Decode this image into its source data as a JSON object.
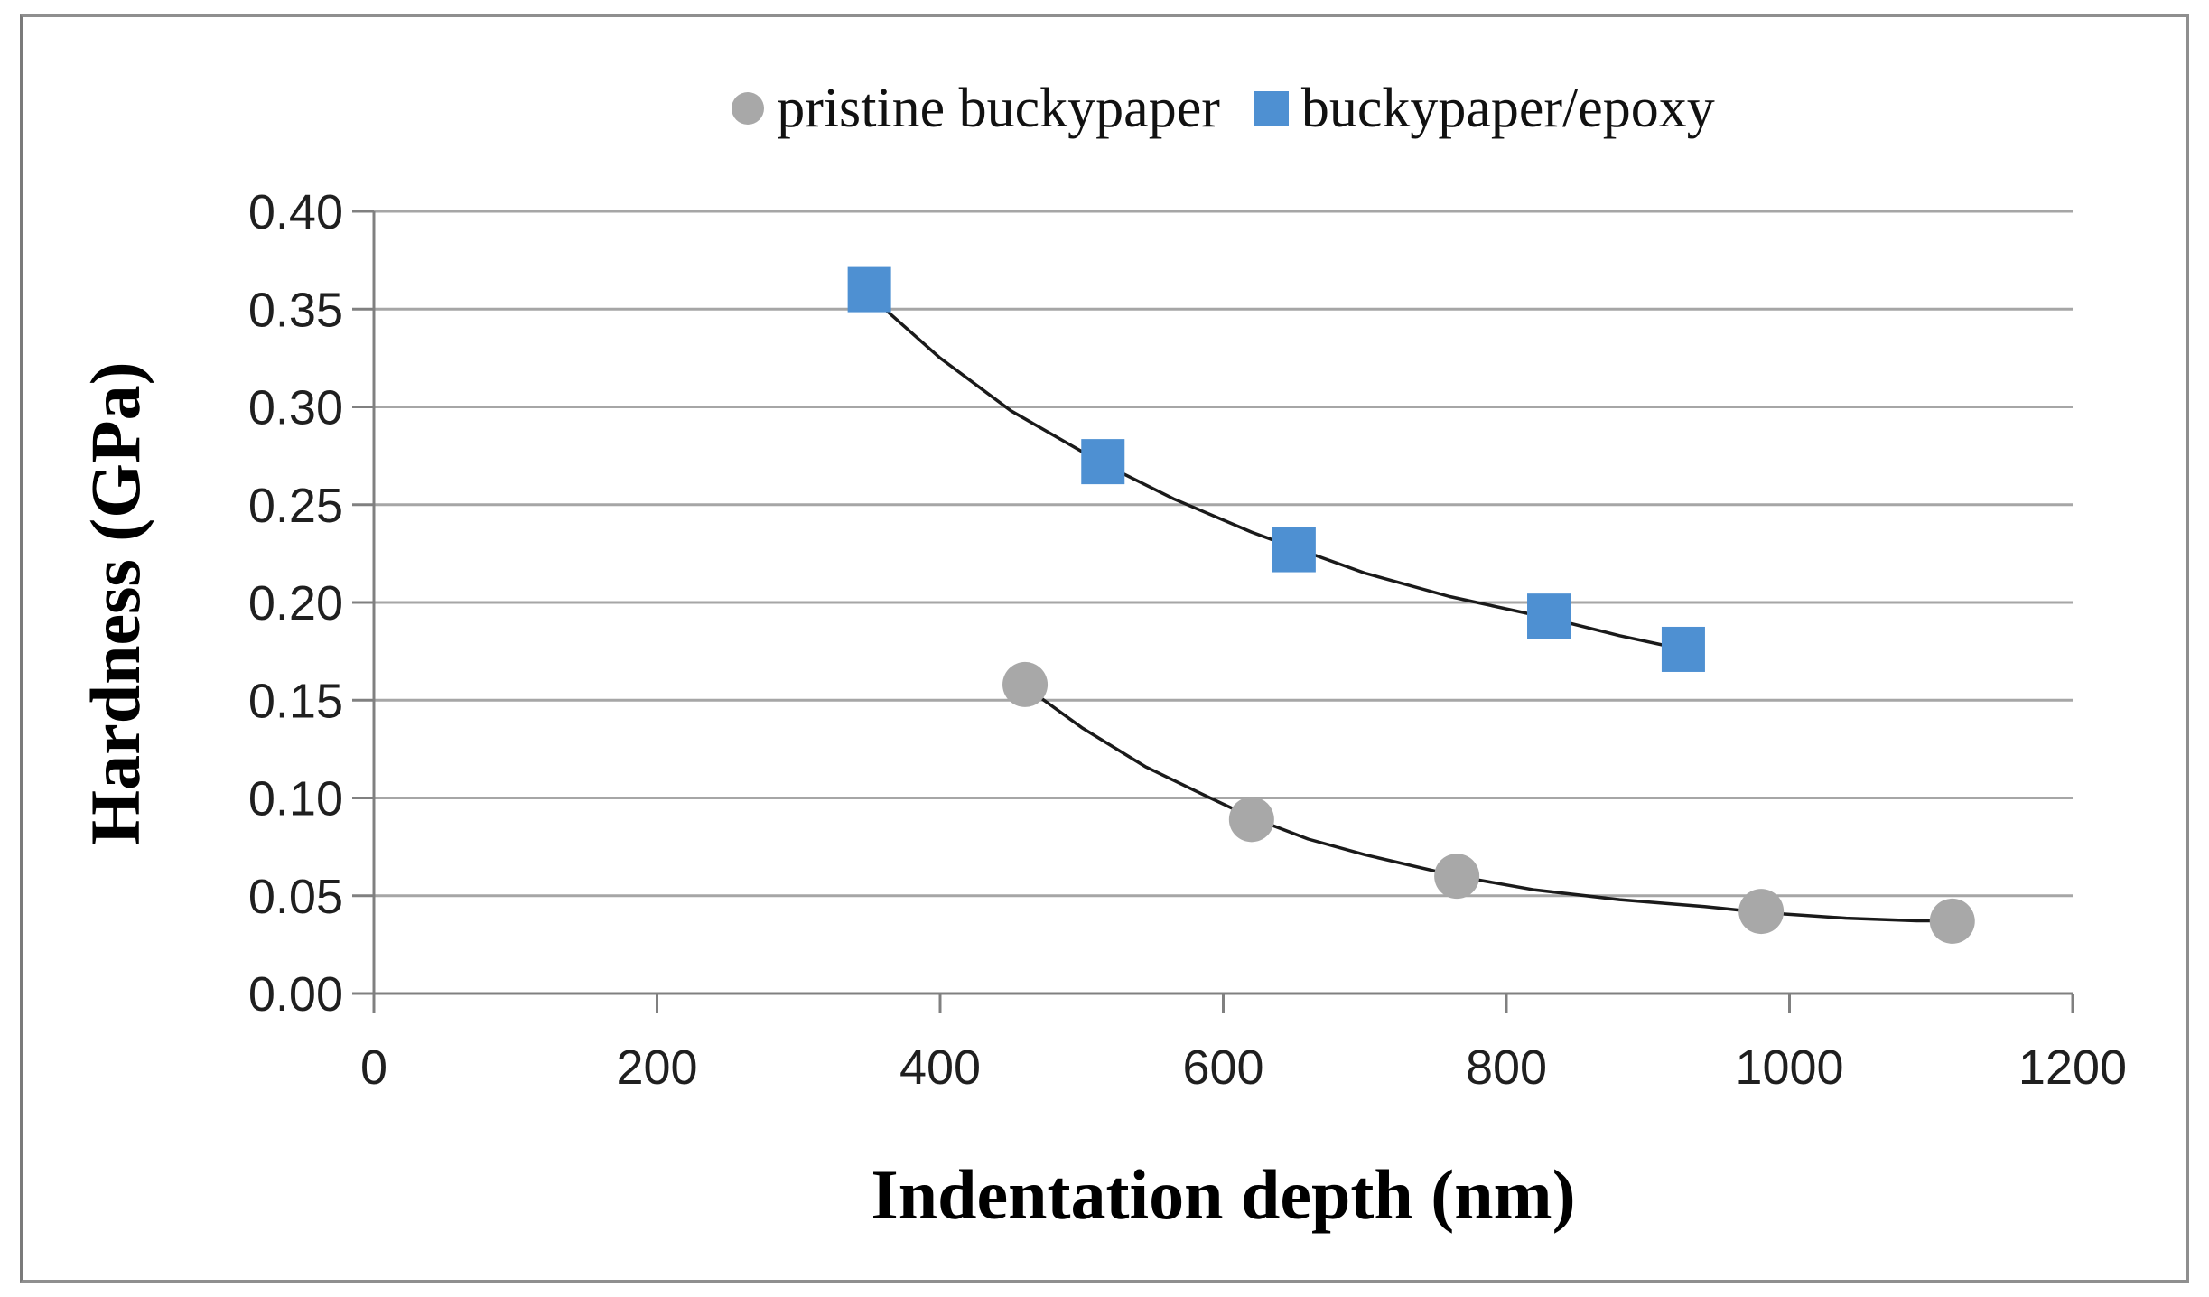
{
  "figure": {
    "background": "#ffffff",
    "border_color": "#8f8f8f"
  },
  "legend": {
    "position": "top-center",
    "items": [
      {
        "label": "pristine buckypaper",
        "marker": "circle",
        "color": "#a8a8a8"
      },
      {
        "label": "buckypaper/epoxy",
        "marker": "square",
        "color": "#4e90d2"
      }
    ]
  },
  "axes": {
    "x": {
      "title": "Indentation depth (nm)"
    },
    "y": {
      "title": "Hardness (GPa)"
    }
  },
  "chart_data": {
    "type": "scatter",
    "title": "",
    "xlabel": "Indentation depth (nm)",
    "ylabel": "Hardness (GPa)",
    "xlim": [
      0,
      1200
    ],
    "ylim": [
      0.0,
      0.4
    ],
    "xticks": [
      0,
      200,
      400,
      600,
      800,
      1000,
      1200
    ],
    "xtick_labels": [
      "0",
      "200",
      "400",
      "600",
      "800",
      "1000",
      "1200"
    ],
    "yticks": [
      0.0,
      0.05,
      0.1,
      0.15,
      0.2,
      0.25,
      0.3,
      0.35,
      0.4
    ],
    "ytick_labels": [
      "0.00",
      "0.05",
      "0.10",
      "0.15",
      "0.20",
      "0.25",
      "0.30",
      "0.35",
      "0.40"
    ],
    "grid": "horizontal",
    "gridline_color": "#a6a6a6",
    "axis_color": "#808080",
    "trendline_color": "#1a1a1a",
    "legend_position": "top-center",
    "series": [
      {
        "name": "pristine buckypaper",
        "marker": "circle",
        "color": "#a8a8a8",
        "points": [
          [
            460,
            0.158
          ],
          [
            620,
            0.089
          ],
          [
            765,
            0.06
          ],
          [
            980,
            0.042
          ],
          [
            1115,
            0.037
          ]
        ],
        "trendline": [
          [
            460,
            0.157
          ],
          [
            500,
            0.136
          ],
          [
            545,
            0.116
          ],
          [
            585,
            0.102
          ],
          [
            620,
            0.09
          ],
          [
            660,
            0.079
          ],
          [
            700,
            0.071
          ],
          [
            765,
            0.06
          ],
          [
            820,
            0.053
          ],
          [
            880,
            0.048
          ],
          [
            940,
            0.0445
          ],
          [
            980,
            0.0415
          ],
          [
            1040,
            0.0385
          ],
          [
            1090,
            0.0372
          ],
          [
            1115,
            0.0372
          ]
        ]
      },
      {
        "name": "buckypaper/epoxy",
        "marker": "square",
        "color": "#4e90d2",
        "points": [
          [
            350,
            0.36
          ],
          [
            515,
            0.272
          ],
          [
            650,
            0.227
          ],
          [
            830,
            0.193
          ],
          [
            925,
            0.176
          ]
        ],
        "trendline": [
          [
            350,
            0.357
          ],
          [
            400,
            0.325
          ],
          [
            450,
            0.298
          ],
          [
            515,
            0.271
          ],
          [
            565,
            0.253
          ],
          [
            620,
            0.236
          ],
          [
            650,
            0.228
          ],
          [
            700,
            0.215
          ],
          [
            760,
            0.203
          ],
          [
            830,
            0.192
          ],
          [
            880,
            0.183
          ],
          [
            925,
            0.176
          ]
        ]
      }
    ]
  }
}
